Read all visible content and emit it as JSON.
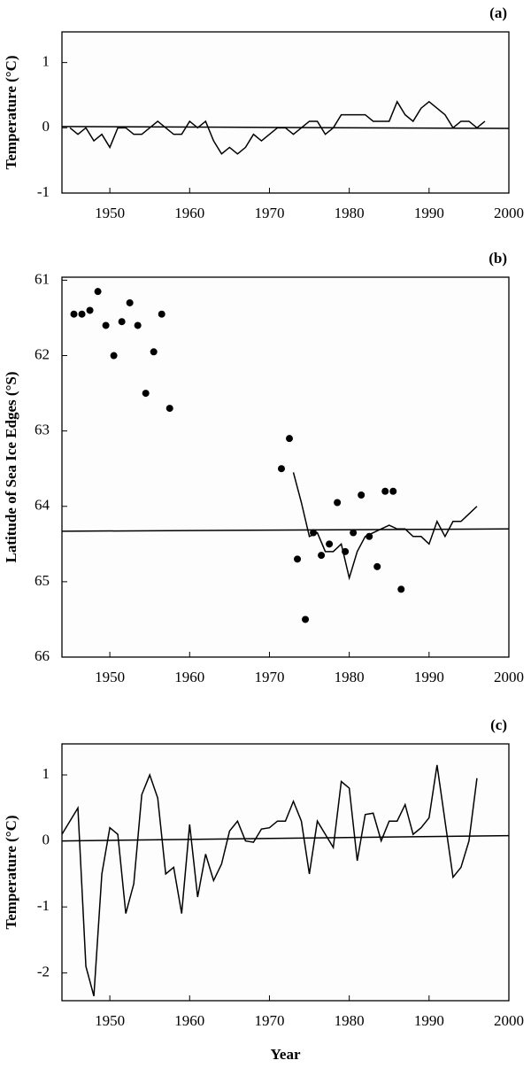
{
  "chart_data": [
    {
      "type": "line",
      "title": "(a)",
      "ylabel": "Temperature (°C)",
      "xlim": [
        1944,
        2000
      ],
      "xticks": [
        1950,
        1960,
        1970,
        1980,
        1990,
        2000
      ],
      "ylim": [
        -1,
        1.47
      ],
      "yticks": [
        -1,
        0,
        1
      ],
      "y_inverted": false,
      "series": [
        {
          "type": "line",
          "color": "#000000",
          "x": [
            1945,
            1946,
            1947,
            1948,
            1949,
            1950,
            1951,
            1952,
            1953,
            1954,
            1955,
            1956,
            1957,
            1958,
            1959,
            1960,
            1961,
            1962,
            1963,
            1964,
            1965,
            1966,
            1967,
            1968,
            1969,
            1970,
            1971,
            1972,
            1973,
            1974,
            1975,
            1976,
            1977,
            1978,
            1979,
            1980,
            1981,
            1982,
            1983,
            1984,
            1985,
            1986,
            1987,
            1988,
            1989,
            1990,
            1991,
            1992,
            1993,
            1994,
            1995,
            1996,
            1997
          ],
          "values": [
            0.0,
            -0.1,
            0.0,
            -0.2,
            -0.1,
            -0.3,
            0.0,
            0.0,
            -0.1,
            -0.1,
            0.0,
            0.1,
            0.0,
            -0.1,
            -0.1,
            0.1,
            0.0,
            0.1,
            -0.2,
            -0.4,
            -0.3,
            -0.4,
            -0.3,
            -0.1,
            -0.2,
            -0.1,
            0.0,
            0.0,
            -0.1,
            0.0,
            0.1,
            0.1,
            -0.1,
            0.0,
            0.2,
            0.2,
            0.2,
            0.2,
            0.1,
            0.1,
            0.1,
            0.4,
            0.2,
            0.1,
            0.3,
            0.4,
            0.3,
            0.2,
            0.0,
            0.1,
            0.1,
            0.0,
            0.1
          ]
        },
        {
          "type": "line",
          "color": "#000000",
          "x": [
            1944,
            2000
          ],
          "values": [
            0.02,
            -0.01
          ]
        }
      ]
    },
    {
      "type": "scatter",
      "title": "(b)",
      "ylabel": "Latitude of Sea Ice Edges (°S)",
      "xlim": [
        1944,
        2000
      ],
      "xticks": [
        1950,
        1960,
        1970,
        1980,
        1990,
        2000
      ],
      "ylim": [
        60.96,
        66
      ],
      "yticks": [
        61,
        62,
        63,
        64,
        65,
        66
      ],
      "y_inverted": true,
      "series": [
        {
          "type": "scatter",
          "color": "#000000",
          "x": [
            1945.5,
            1946.5,
            1947.5,
            1948.5,
            1949.5,
            1950.5,
            1951.5,
            1952.5,
            1953.5,
            1954.5,
            1955.5,
            1956.5,
            1957.5,
            1971.5,
            1972.5,
            1973.5,
            1974.5,
            1975.5,
            1976.5,
            1977.5,
            1978.5,
            1979.5,
            1980.5,
            1981.5,
            1982.5,
            1983.5,
            1984.5,
            1985.5,
            1986.5
          ],
          "values": [
            61.45,
            61.45,
            61.4,
            61.15,
            61.6,
            62.0,
            61.55,
            61.3,
            61.6,
            62.5,
            61.95,
            61.45,
            62.7,
            63.5,
            63.1,
            64.7,
            65.5,
            64.35,
            64.65,
            64.5,
            63.95,
            64.6,
            64.35,
            63.85,
            64.4,
            64.8,
            63.8,
            63.8,
            65.1
          ]
        },
        {
          "type": "line",
          "color": "#000000",
          "x": [
            1973,
            1974,
            1975,
            1976,
            1977,
            1978,
            1979,
            1980,
            1981,
            1982,
            1983,
            1984,
            1985,
            1986,
            1987,
            1988,
            1989,
            1990,
            1991,
            1992,
            1993,
            1994,
            1995,
            1996
          ],
          "values": [
            63.55,
            63.95,
            64.4,
            64.35,
            64.6,
            64.6,
            64.5,
            64.95,
            64.6,
            64.4,
            64.35,
            64.3,
            64.25,
            64.3,
            64.3,
            64.4,
            64.4,
            64.5,
            64.2,
            64.4,
            64.2,
            64.2,
            64.1,
            64.0
          ]
        },
        {
          "type": "line",
          "color": "#000000",
          "x": [
            1944,
            2000
          ],
          "values": [
            64.33,
            64.3
          ]
        }
      ]
    },
    {
      "type": "line",
      "title": "(c)",
      "ylabel": "Temperature (°C)",
      "xlabel": "Year",
      "xlim": [
        1944,
        2000
      ],
      "xticks": [
        1950,
        1960,
        1970,
        1980,
        1990,
        2000
      ],
      "ylim": [
        -2.42,
        1.47
      ],
      "yticks": [
        -2,
        -1,
        0,
        1
      ],
      "y_inverted": false,
      "series": [
        {
          "type": "line",
          "color": "#000000",
          "x": [
            1944,
            1946,
            1947,
            1948,
            1949,
            1950,
            1951,
            1952,
            1953,
            1954,
            1955,
            1956,
            1957,
            1958,
            1959,
            1960,
            1961,
            1962,
            1963,
            1964,
            1965,
            1966,
            1967,
            1968,
            1969,
            1970,
            1971,
            1972,
            1973,
            1974,
            1975,
            1976,
            1977,
            1978,
            1979,
            1980,
            1981,
            1982,
            1983,
            1984,
            1985,
            1986,
            1987,
            1988,
            1989,
            1990,
            1991,
            1992,
            1993,
            1994,
            1995,
            1996
          ],
          "values": [
            0.1,
            0.5,
            -1.9,
            -2.35,
            -0.5,
            0.2,
            0.1,
            -1.1,
            -0.65,
            0.7,
            1.0,
            0.65,
            -0.5,
            -0.4,
            -1.1,
            0.25,
            -0.85,
            -0.2,
            -0.6,
            -0.35,
            0.15,
            0.3,
            0.0,
            -0.02,
            0.18,
            0.2,
            0.3,
            0.3,
            0.6,
            0.3,
            -0.5,
            0.3,
            0.1,
            -0.1,
            0.9,
            0.8,
            -0.3,
            0.4,
            0.42,
            0.0,
            0.3,
            0.3,
            0.55,
            0.1,
            0.2,
            0.35,
            1.15,
            0.3,
            -0.55,
            -0.4,
            0.0,
            0.95
          ]
        },
        {
          "type": "line",
          "color": "#000000",
          "x": [
            1944,
            2000
          ],
          "values": [
            0.0,
            0.08
          ]
        }
      ]
    }
  ]
}
